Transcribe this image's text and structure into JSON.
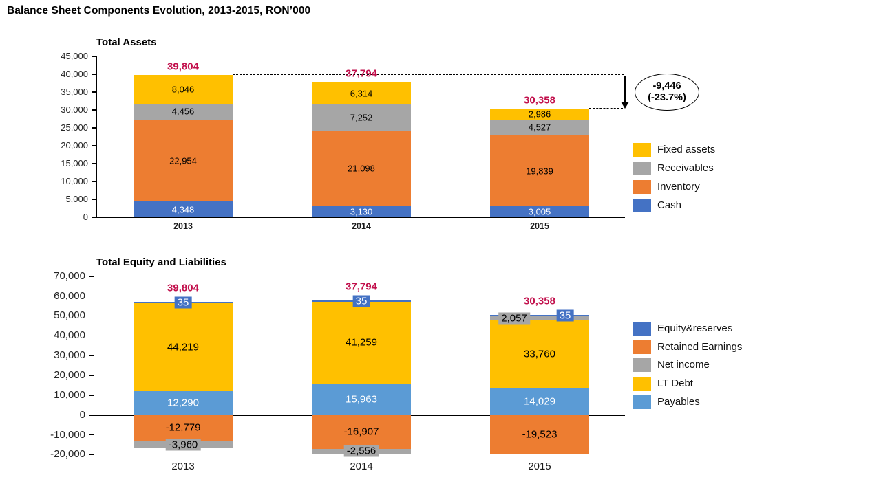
{
  "page_title": "Balance Sheet Components Evolution, 2013-2015, RON’000",
  "colors": {
    "cash_blue": "#4472C4",
    "inventory_orange": "#ED7D31",
    "receivables_gray": "#A6A6A6",
    "fixed_assets_yellow": "#FFC000",
    "payables_light_blue": "#5B9BD5",
    "total_red": "#C2104C",
    "axis_black": "#000000"
  },
  "chart_data": [
    {
      "type": "bar",
      "stacked": true,
      "title": "Total Assets",
      "categories": [
        "2013",
        "2014",
        "2015"
      ],
      "series": [
        {
          "name": "Cash",
          "color": "#4472C4",
          "text": "#FFFFFF",
          "values": [
            4348,
            3130,
            3005
          ]
        },
        {
          "name": "Inventory",
          "color": "#ED7D31",
          "text": "#000000",
          "values": [
            22954,
            21098,
            19839
          ]
        },
        {
          "name": "Receivables",
          "color": "#A6A6A6",
          "text": "#000000",
          "values": [
            4456,
            7252,
            4527
          ]
        },
        {
          "name": "Fixed assets",
          "color": "#FFC000",
          "text": "#000000",
          "values": [
            8046,
            6314,
            2986
          ]
        }
      ],
      "totals": [
        39804,
        37794,
        30358
      ],
      "ylim": [
        0,
        45000
      ],
      "ytick_step": 5000,
      "grid": false,
      "legend_position": "right",
      "legend": [
        "Fixed assets",
        "Receivables",
        "Inventory",
        "Cash"
      ],
      "annotation": {
        "delta": "-9,446",
        "percent": "(-23.7%)"
      }
    },
    {
      "type": "bar",
      "stacked": true,
      "title": "Total Equity and Liabilities",
      "categories": [
        "2013",
        "2014",
        "2015"
      ],
      "series": [
        {
          "name": "Payables",
          "color": "#5B9BD5",
          "text": "#FFFFFF",
          "values": [
            12290,
            15963,
            14029
          ]
        },
        {
          "name": "LT Debt",
          "color": "#FFC000",
          "text": "#000000",
          "values": [
            44219,
            41259,
            33760
          ]
        },
        {
          "name": "Retained Earnings",
          "color": "#ED7D31",
          "text": "#000000",
          "values": [
            -12779,
            -16907,
            -19523
          ]
        },
        {
          "name": "Net income",
          "color": "#A6A6A6",
          "text": "#000000",
          "values": [
            -3960,
            -2556,
            2057
          ],
          "label_dx": [
            0,
            0,
            -37
          ]
        },
        {
          "name": "Equity&reserves",
          "color": "#4472C4",
          "text": "#FFFFFF",
          "values": [
            35,
            35,
            35
          ],
          "label_dx": [
            0,
            0,
            37
          ]
        }
      ],
      "totals": [
        39804,
        37794,
        30358
      ],
      "ylim": [
        -20000,
        70000
      ],
      "ytick_step": 10000,
      "grid": false,
      "legend_position": "right",
      "legend": [
        "Equity&reserves",
        "Retained Earnings",
        "Net income",
        "LT Debt",
        "Payables"
      ]
    }
  ]
}
